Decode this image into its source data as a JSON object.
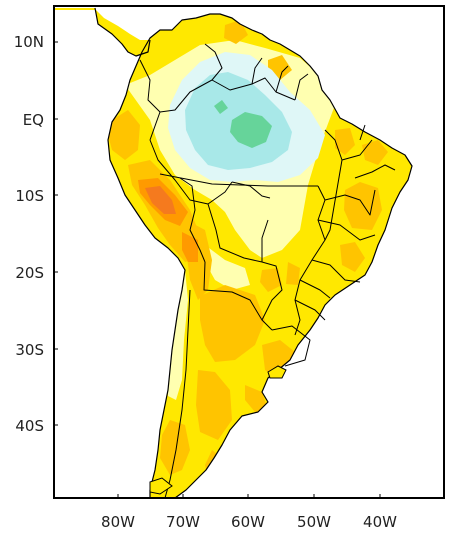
{
  "map": {
    "lat_labels": [
      "10N",
      "EQ",
      "10S",
      "20S",
      "30S",
      "40S"
    ],
    "lon_labels": [
      "80W",
      "70W",
      "60W",
      "50W",
      "40W"
    ],
    "colors": {
      "ocean": "#ffffff",
      "yellow": "#ffe800",
      "light_yellow": "#ffffb0",
      "gold": "#ffc400",
      "orange": "#ff9a00",
      "dark_orange": "#f57a1e",
      "light_cyan": "#dff7f7",
      "cyan": "#a8e8e8",
      "green": "#66d49a",
      "border": "#000000"
    }
  }
}
